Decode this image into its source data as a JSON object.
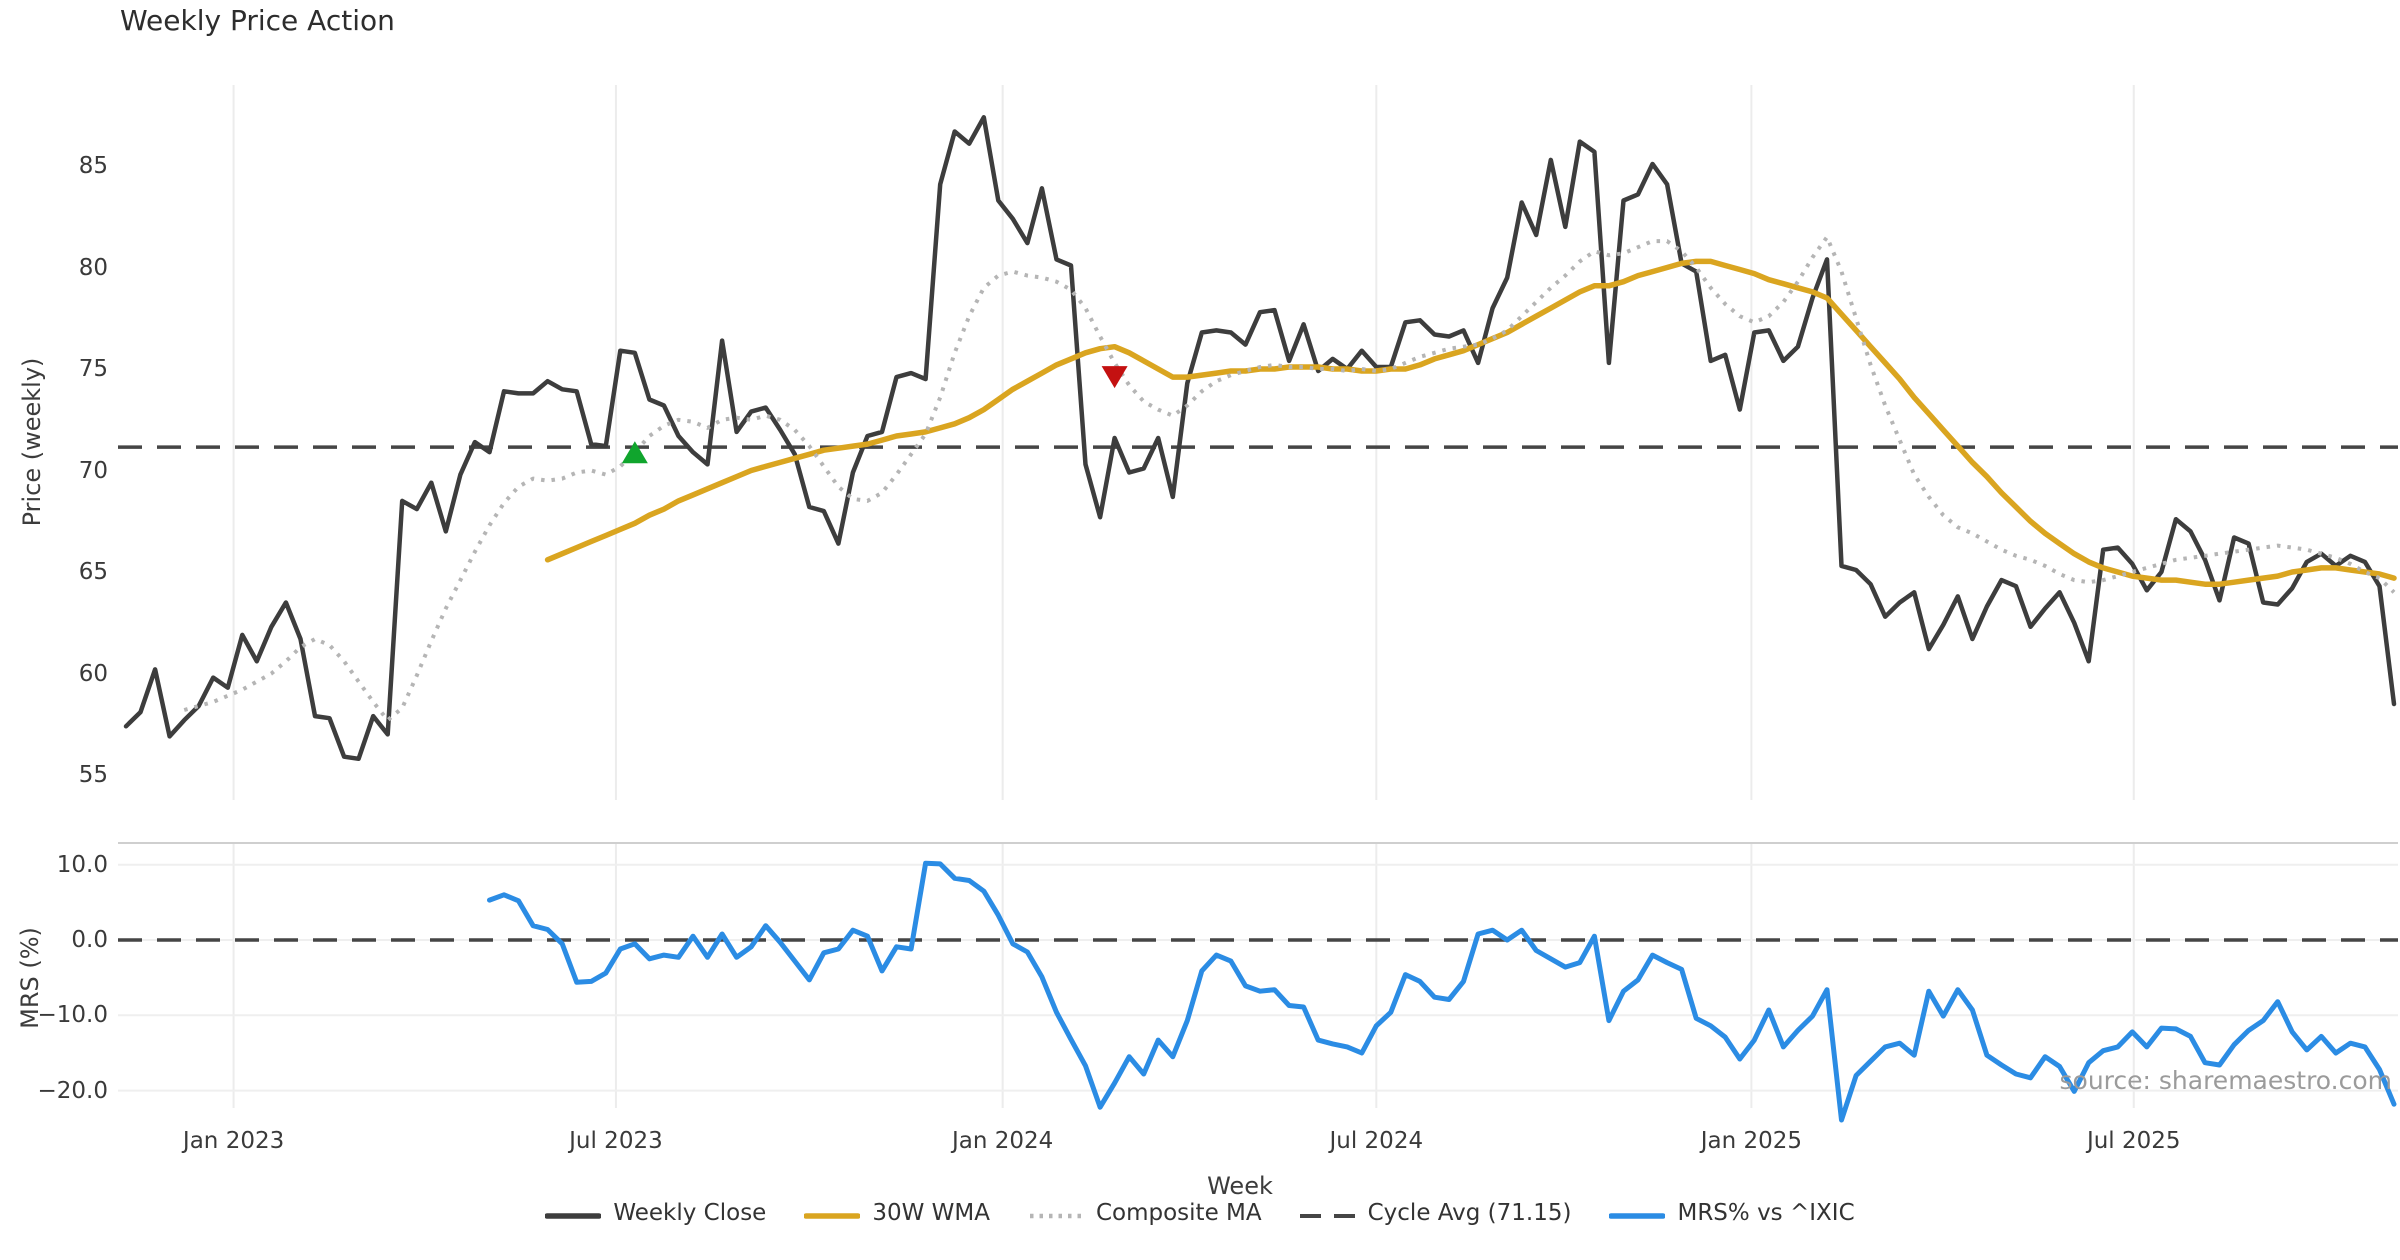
{
  "title": "Weekly Price Action",
  "source_note": "source: sharemaestro.com",
  "colors": {
    "weekly_close": "#3d3d3d",
    "wma": "#DAA520",
    "composite": "#b5b5b5",
    "cycle_avg": "#454545",
    "mrs": "#2b8ce4",
    "buy_marker": "#10a52d",
    "sell_marker": "#c41111",
    "grid": "#ececec",
    "panel_spine": "#cfcfcf",
    "tick_text": "#3a3a3a",
    "source_text": "#9b9b9b"
  },
  "legend": [
    {
      "label": "Weekly Close",
      "style": "solid",
      "color_key": "weekly_close"
    },
    {
      "label": "30W WMA",
      "style": "solid",
      "color_key": "wma"
    },
    {
      "label": "Composite MA",
      "style": "dotted",
      "color_key": "composite"
    },
    {
      "label": "Cycle Avg (71.15)",
      "style": "dashed",
      "color_key": "cycle_avg"
    },
    {
      "label": "MRS% vs ^IXIC",
      "style": "solid",
      "color_key": "mrs"
    }
  ],
  "chart_data": {
    "type": "line",
    "xlabel": "Week",
    "n_weeks": 157,
    "x_ticks": [
      {
        "label": "Jan 2023",
        "week": 7.4
      },
      {
        "label": "Jul 2023",
        "week": 33.7
      },
      {
        "label": "Jan 2024",
        "week": 60.3
      },
      {
        "label": "Jul 2024",
        "week": 86.0
      },
      {
        "label": "Jan 2025",
        "week": 111.8
      },
      {
        "label": "Jul 2025",
        "week": 138.1
      }
    ],
    "panels": [
      {
        "name": "price",
        "ylabel": "Price (weekly)",
        "ylim": [
          53.5,
          89.2
        ],
        "yticks": [
          {
            "label": "55",
            "value": 55
          },
          {
            "label": "60",
            "value": 60
          },
          {
            "label": "65",
            "value": 65
          },
          {
            "label": "70",
            "value": 70
          },
          {
            "label": "75",
            "value": 75
          },
          {
            "label": "80",
            "value": 80
          },
          {
            "label": "85",
            "value": 85
          }
        ],
        "cycle_avg": 71.15,
        "grid": "vertical-only",
        "markers": [
          {
            "type": "buy-signal",
            "shape": "triangle-up",
            "color_key": "buy_marker",
            "week": 35,
            "value": 70.9
          },
          {
            "type": "sell-signal",
            "shape": "triangle-down",
            "color_key": "sell_marker",
            "week": 68,
            "value": 74.6
          }
        ],
        "series": [
          {
            "name": "Weekly Close",
            "color_key": "weekly_close",
            "style": "solid",
            "width": 4.5,
            "values": [
              57.4,
              58.1,
              60.2,
              56.9,
              57.7,
              58.4,
              59.8,
              59.3,
              61.9,
              60.6,
              62.3,
              63.5,
              61.7,
              57.9,
              57.8,
              55.9,
              55.8,
              57.9,
              57.0,
              68.5,
              68.1,
              69.4,
              67.0,
              69.8,
              71.4,
              70.9,
              73.9,
              73.8,
              73.8,
              74.4,
              74.0,
              73.9,
              71.3,
              71.2,
              75.9,
              75.8,
              73.5,
              73.2,
              71.7,
              70.9,
              70.3,
              76.4,
              71.9,
              72.9,
              73.1,
              72.0,
              70.8,
              68.2,
              68.0,
              66.4,
              69.9,
              71.7,
              71.9,
              74.6,
              74.8,
              74.5,
              84.1,
              86.7,
              86.1,
              87.4,
              83.3,
              82.4,
              81.2,
              83.9,
              80.4,
              80.1,
              70.3,
              67.7,
              71.6,
              69.9,
              70.1,
              71.6,
              68.7,
              74.3,
              76.8,
              76.9,
              76.8,
              76.2,
              77.8,
              77.9,
              75.4,
              77.2,
              74.9,
              75.5,
              75.0,
              75.9,
              75.1,
              75.1,
              77.3,
              77.4,
              76.7,
              76.6,
              76.9,
              75.3,
              78.0,
              79.5,
              83.2,
              81.6,
              85.3,
              82.0,
              86.2,
              85.7,
              75.3,
              83.3,
              83.6,
              85.1,
              84.1,
              80.2,
              79.8,
              75.4,
              75.7,
              73.0,
              76.8,
              76.9,
              75.4,
              76.1,
              78.5,
              80.4,
              65.3,
              65.1,
              64.4,
              62.8,
              63.5,
              64.0,
              61.2,
              62.4,
              63.8,
              61.7,
              63.3,
              64.6,
              64.3,
              62.3,
              63.2,
              64.0,
              62.5,
              60.6,
              66.1,
              66.2,
              65.4,
              64.1,
              65.0,
              67.6,
              67.0,
              65.6,
              63.6,
              66.7,
              66.4,
              63.5,
              63.4,
              64.2,
              65.5,
              65.9,
              65.3,
              65.8,
              65.5,
              64.3,
              58.5
            ]
          },
          {
            "name": "30W WMA",
            "color_key": "wma",
            "style": "solid",
            "width": 5.5,
            "values": [
              null,
              null,
              null,
              null,
              null,
              null,
              null,
              null,
              null,
              null,
              null,
              null,
              null,
              null,
              null,
              null,
              null,
              null,
              null,
              null,
              null,
              null,
              null,
              null,
              null,
              null,
              null,
              null,
              null,
              65.6,
              65.9,
              66.2,
              66.5,
              66.8,
              67.1,
              67.4,
              67.8,
              68.1,
              68.5,
              68.8,
              69.1,
              69.4,
              69.7,
              70.0,
              70.2,
              70.4,
              70.6,
              70.8,
              71.0,
              71.1,
              71.2,
              71.3,
              71.5,
              71.7,
              71.8,
              71.9,
              72.1,
              72.3,
              72.6,
              73.0,
              73.5,
              74.0,
              74.4,
              74.8,
              75.2,
              75.5,
              75.8,
              76.0,
              76.1,
              75.8,
              75.4,
              75.0,
              74.6,
              74.6,
              74.7,
              74.8,
              74.9,
              74.9,
              75.0,
              75.0,
              75.1,
              75.1,
              75.1,
              75.0,
              75.0,
              74.9,
              74.9,
              75.0,
              75.0,
              75.2,
              75.5,
              75.7,
              75.9,
              76.2,
              76.5,
              76.8,
              77.2,
              77.6,
              78.0,
              78.4,
              78.8,
              79.1,
              79.1,
              79.3,
              79.6,
              79.8,
              80.0,
              80.2,
              80.3,
              80.3,
              80.1,
              79.9,
              79.7,
              79.4,
              79.2,
              79.0,
              78.8,
              78.5,
              77.7,
              76.9,
              76.1,
              75.3,
              74.5,
              73.6,
              72.8,
              72.0,
              71.2,
              70.4,
              69.7,
              68.9,
              68.2,
              67.5,
              66.9,
              66.4,
              65.9,
              65.5,
              65.2,
              65.0,
              64.8,
              64.7,
              64.6,
              64.6,
              64.5,
              64.4,
              64.4,
              64.5,
              64.6,
              64.7,
              64.8,
              65.0,
              65.1,
              65.2,
              65.2,
              65.1,
              65.0,
              64.9,
              64.7
            ]
          },
          {
            "name": "Composite MA",
            "color_key": "composite",
            "style": "dotted",
            "width": 4,
            "values": [
              null,
              null,
              null,
              null,
              58.2,
              58.4,
              58.6,
              58.9,
              59.2,
              59.6,
              60.0,
              60.6,
              61.3,
              61.7,
              61.4,
              60.6,
              59.6,
              58.6,
              57.7,
              58.3,
              59.9,
              61.6,
              63.2,
              64.6,
              66.0,
              67.3,
              68.4,
              69.2,
              69.6,
              69.5,
              69.6,
              69.9,
              70.0,
              69.8,
              70.2,
              70.9,
              71.7,
              72.2,
              72.5,
              72.4,
              72.1,
              72.5,
              72.6,
              72.5,
              72.7,
              72.5,
              72.0,
              71.2,
              70.2,
              69.2,
              68.6,
              68.5,
              68.9,
              69.8,
              70.8,
              71.8,
              73.6,
              75.8,
              77.6,
              79.0,
              79.6,
              79.8,
              79.6,
              79.5,
              79.3,
              78.9,
              78.0,
              76.6,
              75.3,
              74.2,
              73.4,
              73.0,
              72.7,
              73.2,
              73.9,
              74.4,
              74.7,
              74.9,
              75.1,
              75.2,
              75.1,
              75.1,
              75.0,
              75.0,
              74.9,
              75.0,
              74.9,
              75.0,
              75.3,
              75.6,
              75.8,
              76.0,
              76.1,
              76.2,
              76.5,
              76.9,
              77.6,
              78.3,
              79.0,
              79.6,
              80.3,
              80.8,
              80.6,
              80.7,
              81.0,
              81.3,
              81.3,
              80.8,
              80.0,
              79.0,
              78.2,
              77.6,
              77.3,
              77.6,
              78.3,
              79.3,
              80.5,
              81.5,
              79.8,
              77.5,
              75.2,
              73.2,
              71.5,
              69.8,
              68.7,
              67.8,
              67.2,
              66.9,
              66.5,
              66.1,
              65.8,
              65.6,
              65.3,
              64.9,
              64.6,
              64.5,
              64.6,
              64.8,
              65.0,
              65.2,
              65.4,
              65.6,
              65.7,
              65.8,
              65.9,
              66.0,
              66.1,
              66.2,
              66.3,
              66.2,
              66.1,
              65.9,
              65.7,
              65.4,
              65.0,
              64.7,
              64.0
            ]
          }
        ]
      },
      {
        "name": "mrs",
        "ylabel": "MRS (%)",
        "ylim": [
          12.9,
          -24.7
        ],
        "yticks": [
          {
            "label": "10.0",
            "value": 10
          },
          {
            "label": "0.0",
            "value": 0
          },
          {
            "label": "−10.0",
            "value": -10
          },
          {
            "label": "−20.0",
            "value": -20
          }
        ],
        "zero_line": 0,
        "grid": "both",
        "series": [
          {
            "name": "MRS% vs ^IXIC",
            "color_key": "mrs",
            "style": "solid",
            "width": 5,
            "values": [
              null,
              null,
              null,
              null,
              null,
              null,
              null,
              null,
              null,
              null,
              null,
              null,
              null,
              null,
              null,
              null,
              null,
              null,
              null,
              null,
              null,
              null,
              null,
              null,
              null,
              5.3,
              6.0,
              5.2,
              1.9,
              1.4,
              -0.5,
              -5.6,
              -5.5,
              -4.4,
              -1.2,
              -0.5,
              -2.5,
              -2.0,
              -2.3,
              0.5,
              -2.3,
              0.8,
              -2.3,
              -0.9,
              1.9,
              -0.3,
              -2.8,
              -5.3,
              -1.7,
              -1.2,
              1.3,
              0.5,
              -4.1,
              -0.9,
              -1.2,
              10.2,
              10.1,
              8.2,
              7.9,
              6.5,
              3.3,
              -0.5,
              -1.6,
              -4.9,
              -9.6,
              -13.2,
              -16.7,
              -22.2,
              -19.0,
              -15.5,
              -17.8,
              -13.3,
              -15.5,
              -10.7,
              -4.1,
              -2.0,
              -2.8,
              -6.1,
              -6.8,
              -6.6,
              -8.7,
              -8.9,
              -13.3,
              -13.8,
              -14.2,
              -15.0,
              -11.4,
              -9.6,
              -4.6,
              -5.5,
              -7.6,
              -7.9,
              -5.5,
              0.8,
              1.3,
              0.0,
              1.3,
              -1.4,
              -2.5,
              -3.6,
              -3.0,
              0.5,
              -10.7,
              -6.8,
              -5.3,
              -2.0,
              -3.0,
              -3.9,
              -10.4,
              -11.4,
              -12.9,
              -15.8,
              -13.3,
              -9.3,
              -14.2,
              -12.0,
              -10.1,
              -6.6,
              -23.9,
              -18.0,
              -16.1,
              -14.2,
              -13.7,
              -15.3,
              -6.8,
              -10.1,
              -6.6,
              -9.3,
              -15.3,
              -16.6,
              -17.8,
              -18.3,
              -15.5,
              -16.8,
              -20.1,
              -16.3,
              -14.7,
              -14.2,
              -12.2,
              -14.2,
              -11.7,
              -11.8,
              -12.8,
              -16.3,
              -16.6,
              -13.9,
              -12.0,
              -10.7,
              -8.2,
              -12.2,
              -14.6,
              -12.8,
              -15.0,
              -13.7,
              -14.2,
              -17.2,
              -21.8
            ]
          }
        ]
      }
    ]
  }
}
